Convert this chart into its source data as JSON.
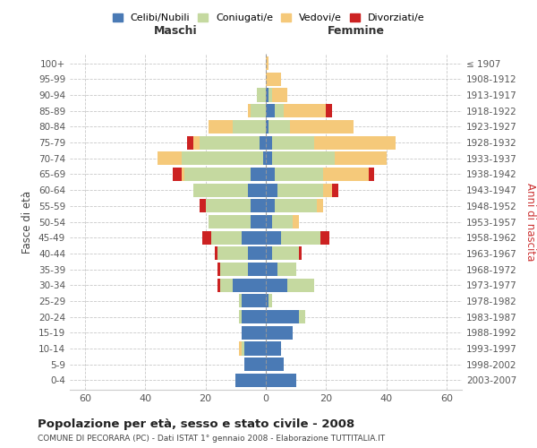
{
  "age_groups": [
    "0-4",
    "5-9",
    "10-14",
    "15-19",
    "20-24",
    "25-29",
    "30-34",
    "35-39",
    "40-44",
    "45-49",
    "50-54",
    "55-59",
    "60-64",
    "65-69",
    "70-74",
    "75-79",
    "80-84",
    "85-89",
    "90-94",
    "95-99",
    "100+"
  ],
  "birth_years": [
    "2003-2007",
    "1998-2002",
    "1993-1997",
    "1988-1992",
    "1983-1987",
    "1978-1982",
    "1973-1977",
    "1968-1972",
    "1963-1967",
    "1958-1962",
    "1953-1957",
    "1948-1952",
    "1943-1947",
    "1938-1942",
    "1933-1937",
    "1928-1932",
    "1923-1927",
    "1918-1922",
    "1913-1917",
    "1908-1912",
    "≤ 1907"
  ],
  "male": {
    "celibi": [
      10,
      7,
      7,
      8,
      8,
      8,
      11,
      6,
      6,
      8,
      5,
      5,
      6,
      5,
      1,
      2,
      0,
      0,
      0,
      0,
      0
    ],
    "coniugati": [
      0,
      0,
      1,
      0,
      1,
      1,
      4,
      9,
      10,
      10,
      14,
      15,
      18,
      22,
      27,
      20,
      11,
      5,
      3,
      0,
      0
    ],
    "vedovi": [
      0,
      0,
      1,
      0,
      0,
      0,
      0,
      0,
      0,
      0,
      0,
      0,
      0,
      1,
      8,
      2,
      8,
      1,
      0,
      0,
      0
    ],
    "divorziati": [
      0,
      0,
      0,
      0,
      0,
      0,
      1,
      1,
      1,
      3,
      0,
      2,
      0,
      3,
      0,
      2,
      0,
      0,
      0,
      0,
      0
    ]
  },
  "female": {
    "nubili": [
      10,
      6,
      5,
      9,
      11,
      1,
      7,
      4,
      2,
      5,
      2,
      3,
      4,
      3,
      2,
      2,
      1,
      3,
      1,
      0,
      0
    ],
    "coniugate": [
      0,
      0,
      0,
      0,
      2,
      1,
      9,
      6,
      9,
      13,
      7,
      14,
      15,
      16,
      21,
      14,
      7,
      3,
      1,
      0,
      0
    ],
    "vedove": [
      0,
      0,
      0,
      0,
      0,
      0,
      0,
      0,
      0,
      0,
      2,
      2,
      3,
      15,
      17,
      27,
      21,
      14,
      5,
      5,
      1
    ],
    "divorziate": [
      0,
      0,
      0,
      0,
      0,
      0,
      0,
      0,
      1,
      3,
      0,
      0,
      2,
      2,
      0,
      0,
      0,
      2,
      0,
      0,
      0
    ]
  },
  "colors": {
    "celibi": "#4a7ab5",
    "coniugati": "#c5d9a0",
    "vedovi": "#f5c97a",
    "divorziati": "#cc2222"
  },
  "xlim": 65,
  "title": "Popolazione per età, sesso e stato civile - 2008",
  "subtitle": "COMUNE DI PECORARA (PC) - Dati ISTAT 1° gennaio 2008 - Elaborazione TUTTITALIA.IT",
  "ylabel_left": "Fasce di età",
  "ylabel_right": "Anni di nascita",
  "xlabel_male": "Maschi",
  "xlabel_female": "Femmine",
  "legend_labels": [
    "Celibi/Nubili",
    "Coniugati/e",
    "Vedovi/e",
    "Divorziati/e"
  ],
  "background_color": "#ffffff",
  "bar_height": 0.85
}
